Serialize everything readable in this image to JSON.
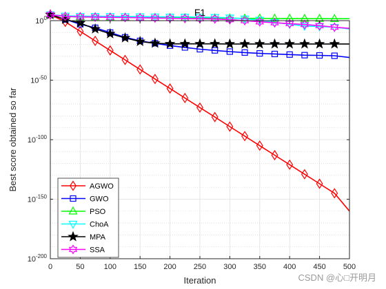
{
  "chart_data": {
    "type": "line",
    "title": "F1",
    "xlabel": "Iteration",
    "ylabel": "Best score obtained so far",
    "xlim": [
      0,
      500
    ],
    "ylim_log10": [
      -200,
      0
    ],
    "yscale": "log",
    "grid": true,
    "legend_position": "bottom-left",
    "x_ticks": [
      0,
      50,
      100,
      150,
      200,
      250,
      300,
      350,
      400,
      450,
      500
    ],
    "y_ticks": [
      {
        "exp": 0,
        "mantissa": "10",
        "power": "0"
      },
      {
        "exp": -50,
        "mantissa": "10",
        "power": "-50"
      },
      {
        "exp": -100,
        "mantissa": "10",
        "power": "-100"
      },
      {
        "exp": -150,
        "mantissa": "10",
        "power": "-150"
      },
      {
        "exp": -200,
        "mantissa": "10",
        "power": "-200"
      }
    ],
    "series": [
      {
        "name": "AGWO",
        "color": "#ff0000",
        "marker": "diamond",
        "points": [
          [
            0,
            5
          ],
          [
            25,
            -1
          ],
          [
            50,
            -9
          ],
          [
            75,
            -17
          ],
          [
            100,
            -25
          ],
          [
            125,
            -33
          ],
          [
            150,
            -41
          ],
          [
            175,
            -49
          ],
          [
            200,
            -57
          ],
          [
            225,
            -65
          ],
          [
            250,
            -73
          ],
          [
            275,
            -81
          ],
          [
            300,
            -89
          ],
          [
            325,
            -97
          ],
          [
            350,
            -105
          ],
          [
            375,
            -113
          ],
          [
            400,
            -121
          ],
          [
            425,
            -129
          ],
          [
            450,
            -137
          ],
          [
            475,
            -145
          ],
          [
            500,
            -160
          ]
        ]
      },
      {
        "name": "GWO",
        "color": "#0000ff",
        "marker": "square",
        "points": [
          [
            0,
            5
          ],
          [
            25,
            1
          ],
          [
            50,
            -3
          ],
          [
            75,
            -6
          ],
          [
            100,
            -10
          ],
          [
            125,
            -14
          ],
          [
            150,
            -17
          ],
          [
            175,
            -19
          ],
          [
            200,
            -21
          ],
          [
            225,
            -22.5
          ],
          [
            250,
            -24
          ],
          [
            275,
            -25
          ],
          [
            300,
            -26
          ],
          [
            325,
            -26.8
          ],
          [
            350,
            -27.5
          ],
          [
            375,
            -28
          ],
          [
            400,
            -28.5
          ],
          [
            425,
            -29
          ],
          [
            450,
            -29.2
          ],
          [
            475,
            -29.5
          ],
          [
            500,
            -31
          ]
        ]
      },
      {
        "name": "PSO",
        "color": "#00ff00",
        "marker": "triangle-up",
        "points": [
          [
            0,
            5
          ],
          [
            25,
            3.5
          ],
          [
            50,
            3
          ],
          [
            75,
            3
          ],
          [
            100,
            2.8
          ],
          [
            125,
            2.7
          ],
          [
            150,
            2.6
          ],
          [
            175,
            2.5
          ],
          [
            200,
            2.4
          ],
          [
            225,
            2.3
          ],
          [
            250,
            2.2
          ],
          [
            275,
            2.1
          ],
          [
            300,
            2.0
          ],
          [
            325,
            1.9
          ],
          [
            350,
            1.9
          ],
          [
            375,
            1.8
          ],
          [
            400,
            1.8
          ],
          [
            425,
            1.7
          ],
          [
            450,
            1.7
          ],
          [
            475,
            1.6
          ],
          [
            500,
            1.6
          ]
        ]
      },
      {
        "name": "ChoA",
        "color": "#00ffff",
        "marker": "triangle-down",
        "points": [
          [
            0,
            5
          ],
          [
            25,
            4
          ],
          [
            50,
            3.8
          ],
          [
            75,
            3.7
          ],
          [
            100,
            3.6
          ],
          [
            125,
            3.5
          ],
          [
            150,
            3.4
          ],
          [
            175,
            3.3
          ],
          [
            200,
            3.2
          ],
          [
            225,
            3.1
          ],
          [
            250,
            3.0
          ],
          [
            275,
            2.8
          ],
          [
            300,
            2.4
          ],
          [
            325,
            1.5
          ],
          [
            350,
            0.5
          ],
          [
            375,
            -1.5
          ],
          [
            400,
            -3
          ],
          [
            425,
            -4.5
          ],
          [
            450,
            -5
          ],
          [
            475,
            -5.5
          ],
          [
            500,
            -7
          ]
        ]
      },
      {
        "name": "MPA",
        "color": "#000000",
        "marker": "star",
        "points": [
          [
            0,
            5
          ],
          [
            25,
            1
          ],
          [
            50,
            -2
          ],
          [
            75,
            -7
          ],
          [
            100,
            -11
          ],
          [
            125,
            -14.5
          ],
          [
            150,
            -17.5
          ],
          [
            175,
            -19
          ],
          [
            200,
            -19.5
          ],
          [
            225,
            -19.5
          ],
          [
            250,
            -19.5
          ],
          [
            275,
            -19.5
          ],
          [
            300,
            -19.6
          ],
          [
            325,
            -19.6
          ],
          [
            350,
            -19.6
          ],
          [
            375,
            -19.6
          ],
          [
            400,
            -19.6
          ],
          [
            425,
            -19.6
          ],
          [
            450,
            -19.6
          ],
          [
            475,
            -19.6
          ],
          [
            500,
            -19.6
          ]
        ]
      },
      {
        "name": "SSA",
        "color": "#ff00ff",
        "marker": "hexagram",
        "points": [
          [
            0,
            5
          ],
          [
            25,
            3.5
          ],
          [
            50,
            3.2
          ],
          [
            75,
            3.0
          ],
          [
            100,
            2.8
          ],
          [
            125,
            2.6
          ],
          [
            150,
            2.4
          ],
          [
            175,
            2.2
          ],
          [
            200,
            2.0
          ],
          [
            225,
            1.8
          ],
          [
            250,
            1.6
          ],
          [
            275,
            1.4
          ],
          [
            300,
            0.8
          ],
          [
            325,
            0
          ],
          [
            350,
            -1
          ],
          [
            375,
            -1.8
          ],
          [
            400,
            -2.5
          ],
          [
            425,
            -3.3
          ],
          [
            450,
            -4.2
          ],
          [
            475,
            -5.5
          ],
          [
            500,
            -6.5
          ]
        ]
      }
    ]
  },
  "watermark": "CSDN @心□开明月"
}
